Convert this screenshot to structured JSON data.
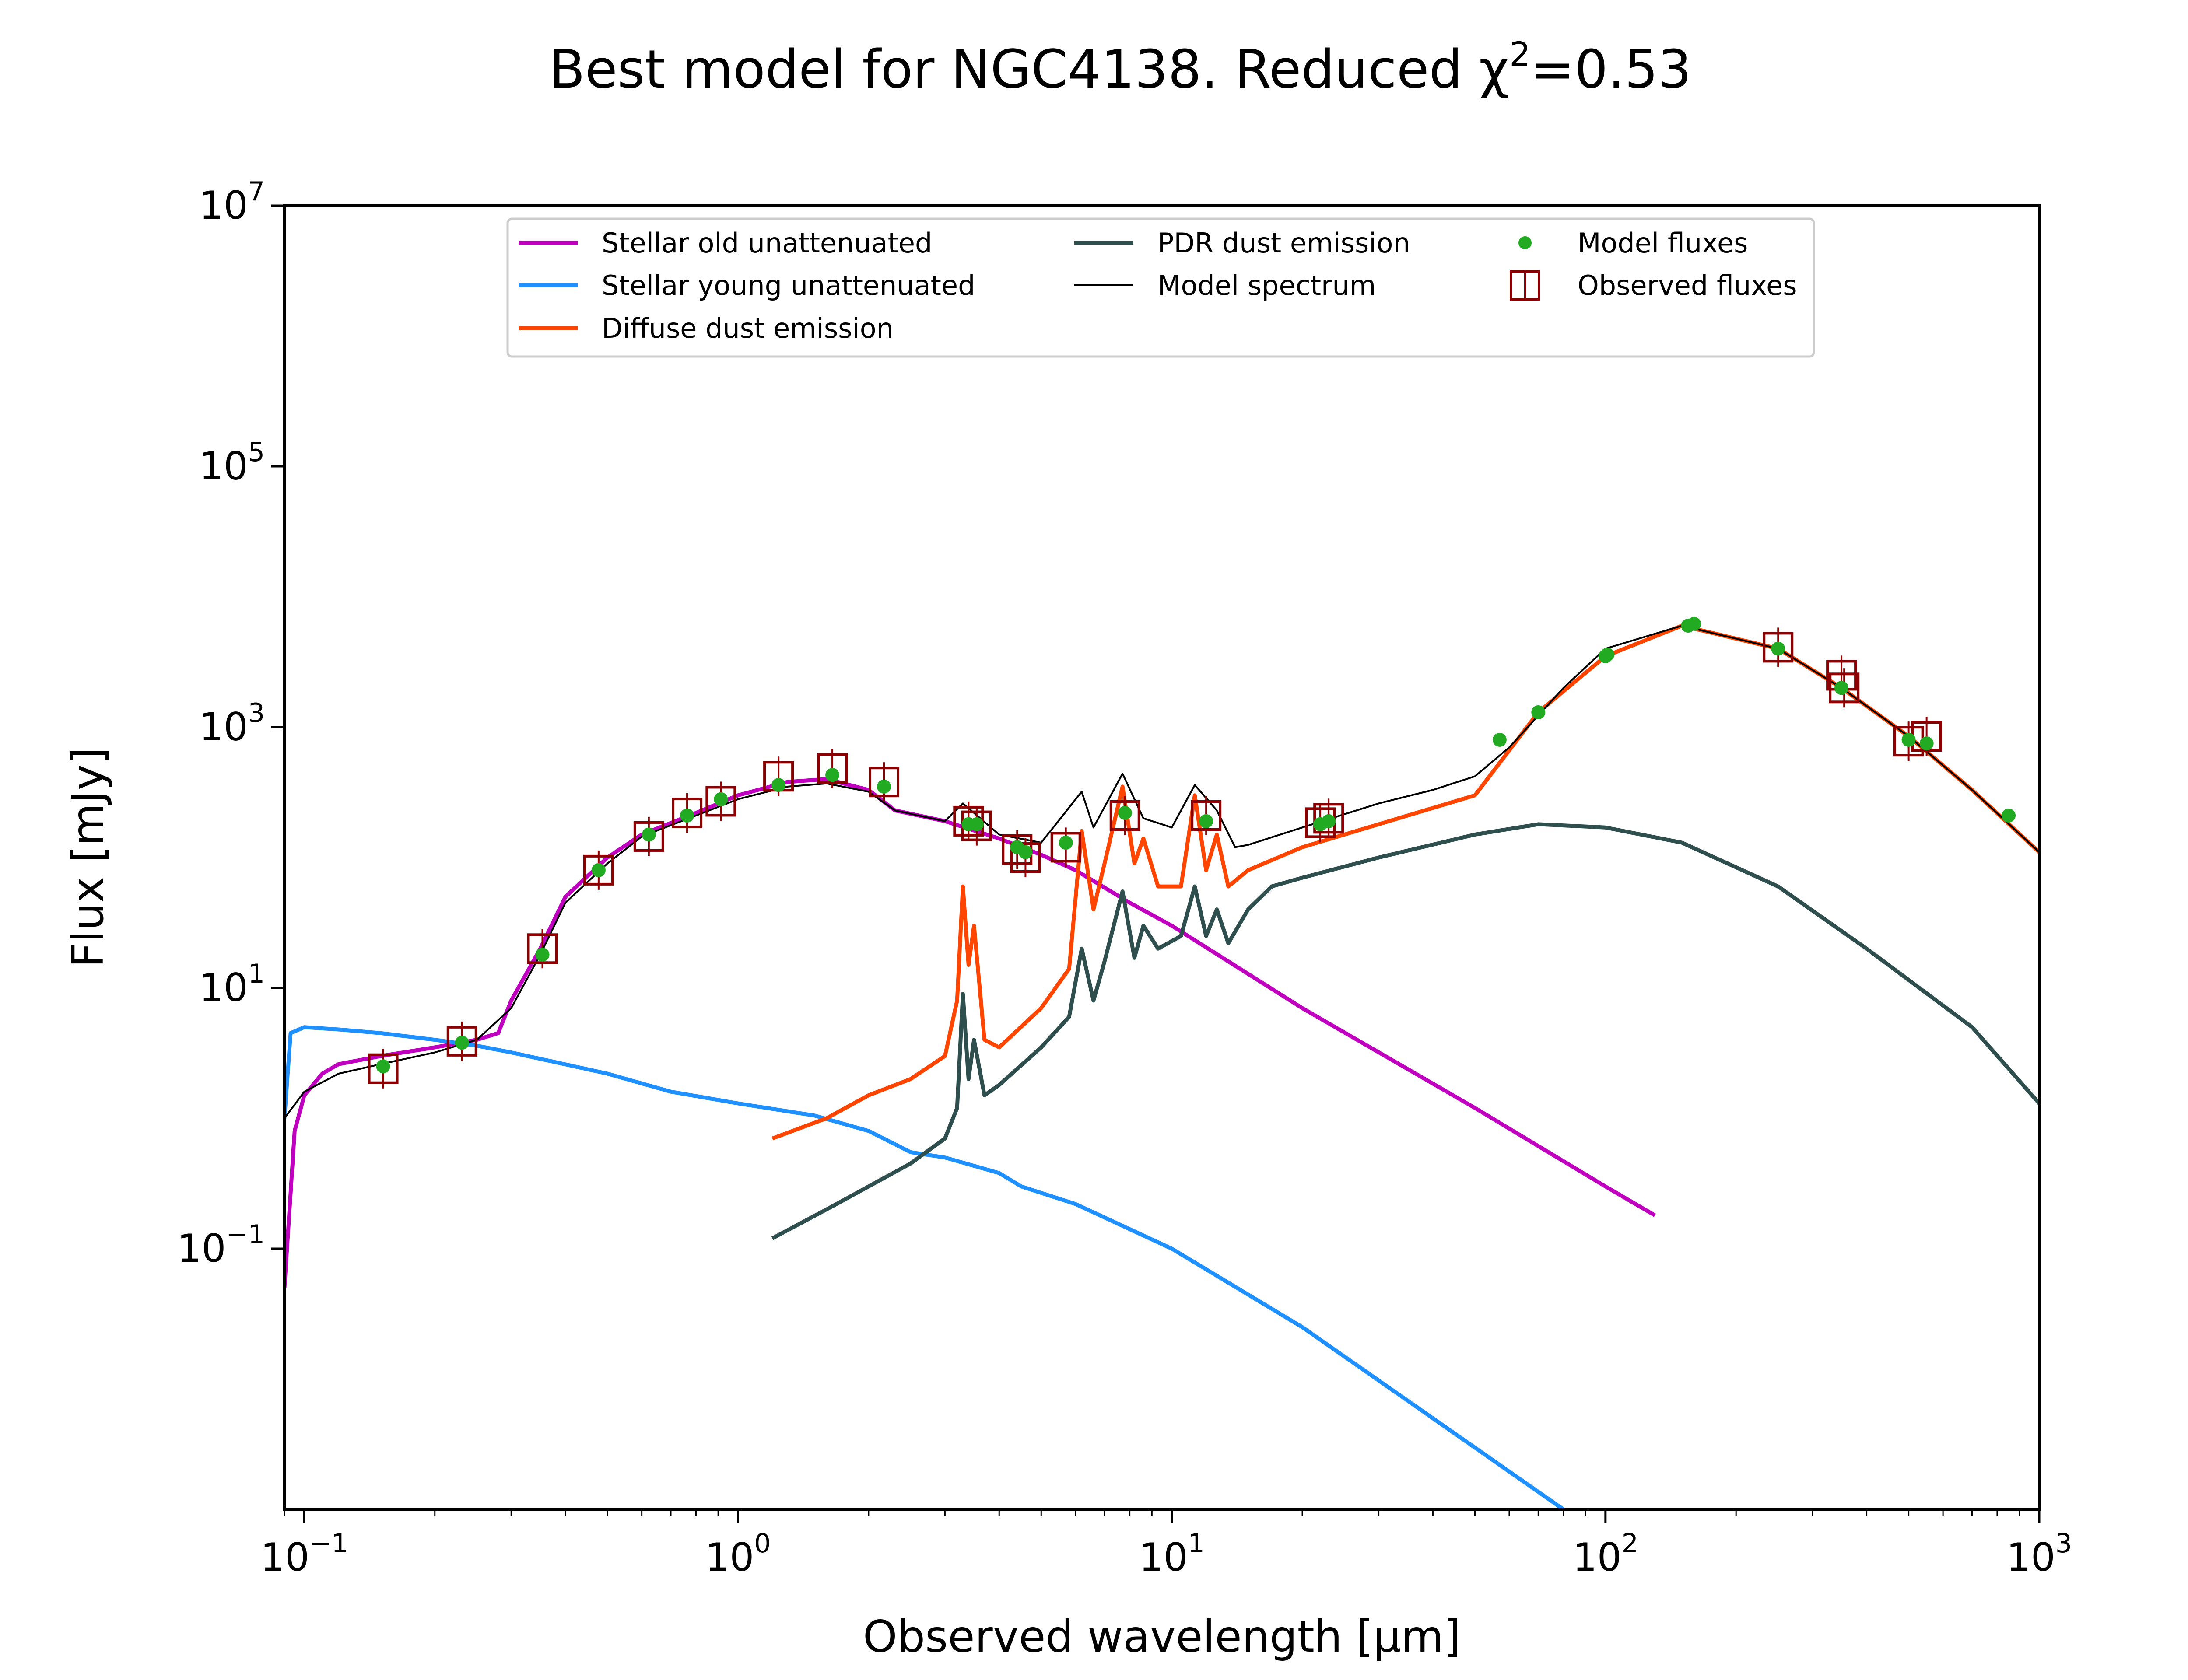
{
  "chart_data": {
    "type": "line",
    "title": "Best model for NGC4138. Reduced χ²=0.53",
    "title_main": "Best model for NGC4138. Reduced χ",
    "title_sup": "2",
    "title_tail": "=0.53",
    "xlabel": "Observed wavelength [μm]",
    "ylabel": "Flux [mJy]",
    "xscale": "log",
    "yscale": "log",
    "xlim": [
      0.09,
      1000
    ],
    "ylim": [
      0.001,
      10000000
    ],
    "x_ticks": [
      {
        "value": 0.1,
        "base": "10",
        "exp": "−1"
      },
      {
        "value": 1,
        "base": "10",
        "exp": "0"
      },
      {
        "value": 10,
        "base": "10",
        "exp": "1"
      },
      {
        "value": 100,
        "base": "10",
        "exp": "2"
      },
      {
        "value": 1000,
        "base": "10",
        "exp": "3"
      }
    ],
    "y_ticks": [
      {
        "value": 0.1,
        "base": "10",
        "exp": "−1"
      },
      {
        "value": 10,
        "base": "10",
        "exp": "1"
      },
      {
        "value": 1000,
        "base": "10",
        "exp": "3"
      },
      {
        "value": 100000,
        "base": "10",
        "exp": "5"
      },
      {
        "value": 10000000,
        "base": "10",
        "exp": "7"
      }
    ],
    "legend_position": "upper-center",
    "legend": [
      {
        "label": "Stellar old unattenuated",
        "color": "#bf00bf",
        "kind": "line"
      },
      {
        "label": "Stellar young unattenuated",
        "color": "#1e90ff",
        "kind": "line"
      },
      {
        "label": "Diffuse dust emission",
        "color": "#ff4500",
        "kind": "line"
      },
      {
        "label": "PDR dust emission",
        "color": "#2f4f4f",
        "kind": "line"
      },
      {
        "label": "Model spectrum",
        "color": "#000000",
        "kind": "thin-line"
      },
      {
        "label": "Model fluxes",
        "color": "#22aa22",
        "kind": "dot"
      },
      {
        "label": "Observed fluxes",
        "color": "#8b0000",
        "kind": "square"
      }
    ],
    "series": [
      {
        "name": "Stellar old unattenuated",
        "color": "#bf00bf",
        "x": [
          0.09,
          0.095,
          0.1,
          0.11,
          0.12,
          0.15,
          0.2,
          0.25,
          0.28,
          0.3,
          0.35,
          0.4,
          0.5,
          0.6,
          0.8,
          1.0,
          1.3,
          1.6,
          2.0,
          2.3,
          3.0,
          4.0,
          5.0,
          6.0,
          8.0,
          10,
          20,
          50,
          100,
          130
        ],
        "y": [
          0.05,
          0.8,
          1.5,
          2.2,
          2.6,
          3.0,
          3.5,
          4.0,
          4.5,
          8,
          20,
          50,
          100,
          150,
          220,
          300,
          380,
          400,
          330,
          230,
          190,
          140,
          105,
          80,
          45,
          30,
          7,
          1.2,
          0.3,
          0.18
        ]
      },
      {
        "name": "Stellar young unattenuated",
        "color": "#1e90ff",
        "x": [
          0.09,
          0.093,
          0.1,
          0.12,
          0.15,
          0.2,
          0.25,
          0.3,
          0.5,
          0.7,
          1.0,
          1.5,
          2.0,
          2.5,
          3.0,
          4.0,
          4.5,
          6.0,
          10,
          20,
          40,
          80
        ],
        "y": [
          1.0,
          4.5,
          5.0,
          4.8,
          4.5,
          4.0,
          3.6,
          3.2,
          2.2,
          1.6,
          1.3,
          1.05,
          0.8,
          0.55,
          0.5,
          0.38,
          0.3,
          0.22,
          0.1,
          0.025,
          0.005,
          0.001
        ]
      },
      {
        "name": "Diffuse dust emission",
        "color": "#ff4500",
        "x": [
          1.2,
          1.6,
          2.0,
          2.5,
          3.0,
          3.2,
          3.3,
          3.4,
          3.5,
          3.7,
          4.0,
          5.0,
          5.8,
          6.2,
          6.6,
          7.0,
          7.7,
          8.2,
          8.6,
          9.3,
          10.5,
          11.3,
          12.0,
          12.7,
          13.5,
          15,
          20,
          30,
          50,
          70,
          100,
          150,
          250,
          350,
          500,
          700,
          1000
        ],
        "y": [
          0.7,
          1.0,
          1.5,
          2.0,
          3.0,
          8,
          60,
          15,
          30,
          4,
          3.5,
          7,
          14,
          160,
          40,
          90,
          350,
          90,
          140,
          60,
          60,
          300,
          80,
          150,
          60,
          80,
          120,
          180,
          300,
          1300,
          3500,
          6000,
          4000,
          2000,
          850,
          330,
          110
        ]
      },
      {
        "name": "PDR dust emission",
        "color": "#2f4f4f",
        "x": [
          1.2,
          1.6,
          2.0,
          2.5,
          3.0,
          3.2,
          3.3,
          3.4,
          3.5,
          3.7,
          4.0,
          5.0,
          5.8,
          6.2,
          6.6,
          7.0,
          7.7,
          8.2,
          8.6,
          9.3,
          10.5,
          11.3,
          12.0,
          12.7,
          13.5,
          15,
          17,
          20,
          30,
          50,
          70,
          100,
          150,
          250,
          400,
          700,
          1000
        ],
        "y": [
          0.12,
          0.2,
          0.3,
          0.45,
          0.7,
          1.2,
          9,
          2.0,
          4,
          1.5,
          1.8,
          3.5,
          6,
          20,
          8,
          16,
          55,
          17,
          30,
          20,
          25,
          60,
          25,
          40,
          22,
          40,
          60,
          70,
          100,
          150,
          180,
          170,
          130,
          60,
          20,
          5,
          1.3
        ]
      },
      {
        "name": "Model spectrum",
        "color": "#000000",
        "x": [
          0.09,
          0.1,
          0.12,
          0.15,
          0.2,
          0.25,
          0.3,
          0.35,
          0.4,
          0.5,
          0.6,
          0.8,
          1.0,
          1.3,
          1.6,
          2.0,
          2.3,
          3.0,
          3.3,
          3.5,
          4.0,
          5.0,
          6.2,
          6.6,
          7.7,
          8.6,
          10,
          11.3,
          12.7,
          14,
          15,
          20,
          30,
          40,
          50,
          60,
          80,
          100,
          150,
          250,
          350,
          500,
          700,
          1000
        ],
        "y": [
          1.0,
          1.6,
          2.2,
          2.6,
          3.2,
          4.0,
          7,
          18,
          45,
          90,
          145,
          210,
          280,
          350,
          370,
          320,
          230,
          190,
          260,
          220,
          150,
          130,
          320,
          170,
          440,
          200,
          170,
          360,
          230,
          120,
          125,
          170,
          260,
          330,
          420,
          700,
          2000,
          4000,
          6000,
          4000,
          2000,
          850,
          330,
          110
        ]
      }
    ],
    "model_fluxes": {
      "name": "Model fluxes",
      "x": [
        0.152,
        0.231,
        0.354,
        0.477,
        0.623,
        0.763,
        0.913,
        1.24,
        1.65,
        2.17,
        3.4,
        3.55,
        4.4,
        4.6,
        5.7,
        7.8,
        12,
        22,
        23,
        57,
        70,
        100,
        101,
        155,
        160,
        250,
        350,
        500,
        550,
        850
      ],
      "y": [
        2.5,
        3.8,
        18,
        80,
        150,
        210,
        280,
        360,
        430,
        350,
        180,
        180,
        120,
        110,
        130,
        220,
        190,
        180,
        190,
        800,
        1300,
        3500,
        3600,
        6000,
        6200,
        4000,
        2000,
        800,
        750,
        210
      ]
    },
    "observed_fluxes": {
      "name": "Observed fluxes",
      "x": [
        0.152,
        0.231,
        0.354,
        0.477,
        0.623,
        0.763,
        0.913,
        1.24,
        1.65,
        2.17,
        3.4,
        3.55,
        4.4,
        4.6,
        5.7,
        7.8,
        12,
        22,
        23,
        250,
        350,
        355,
        500,
        550
      ],
      "y": [
        2.4,
        3.9,
        20,
        80,
        145,
        220,
        270,
        420,
        480,
        380,
        190,
        175,
        115,
        100,
        120,
        210,
        210,
        185,
        200,
        4100,
        2500,
        2000,
        780,
        850
      ]
    }
  }
}
